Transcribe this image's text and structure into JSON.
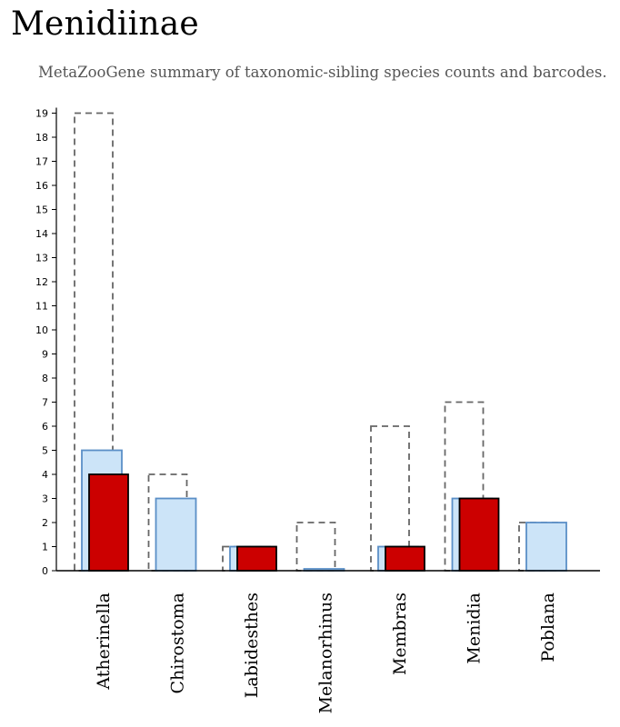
{
  "header": {
    "title": "Menidiinae",
    "subtitle": "MetaZooGene summary of taxonomic-sibling species counts and barcodes."
  },
  "colors": {
    "outline_dashed": "#666666",
    "species_fill": "#cce4f8",
    "species_stroke": "#5b8fc7",
    "barcode_fill": "#cc0000",
    "barcode_stroke": "#000000"
  },
  "chart_data": {
    "type": "bar",
    "categories": [
      "Atherinella",
      "Chirostoma",
      "Labidesthes",
      "Melanorhinus",
      "Membras",
      "Menidia",
      "Poblana"
    ],
    "series": [
      {
        "style": "dashed-outline",
        "values": [
          19,
          4,
          1,
          2,
          6,
          7,
          2
        ]
      },
      {
        "style": "light-blue",
        "values": [
          5,
          3,
          1,
          0,
          1,
          3,
          2
        ]
      },
      {
        "style": "red",
        "values": [
          4,
          0,
          1,
          0,
          1,
          3,
          0
        ]
      }
    ],
    "yticks": [
      0,
      1,
      2,
      3,
      4,
      5,
      6,
      7,
      8,
      9,
      10,
      11,
      12,
      13,
      14,
      15,
      16,
      17,
      18,
      19
    ],
    "ylim": [
      0,
      19
    ],
    "grid": false,
    "legend": "none"
  }
}
